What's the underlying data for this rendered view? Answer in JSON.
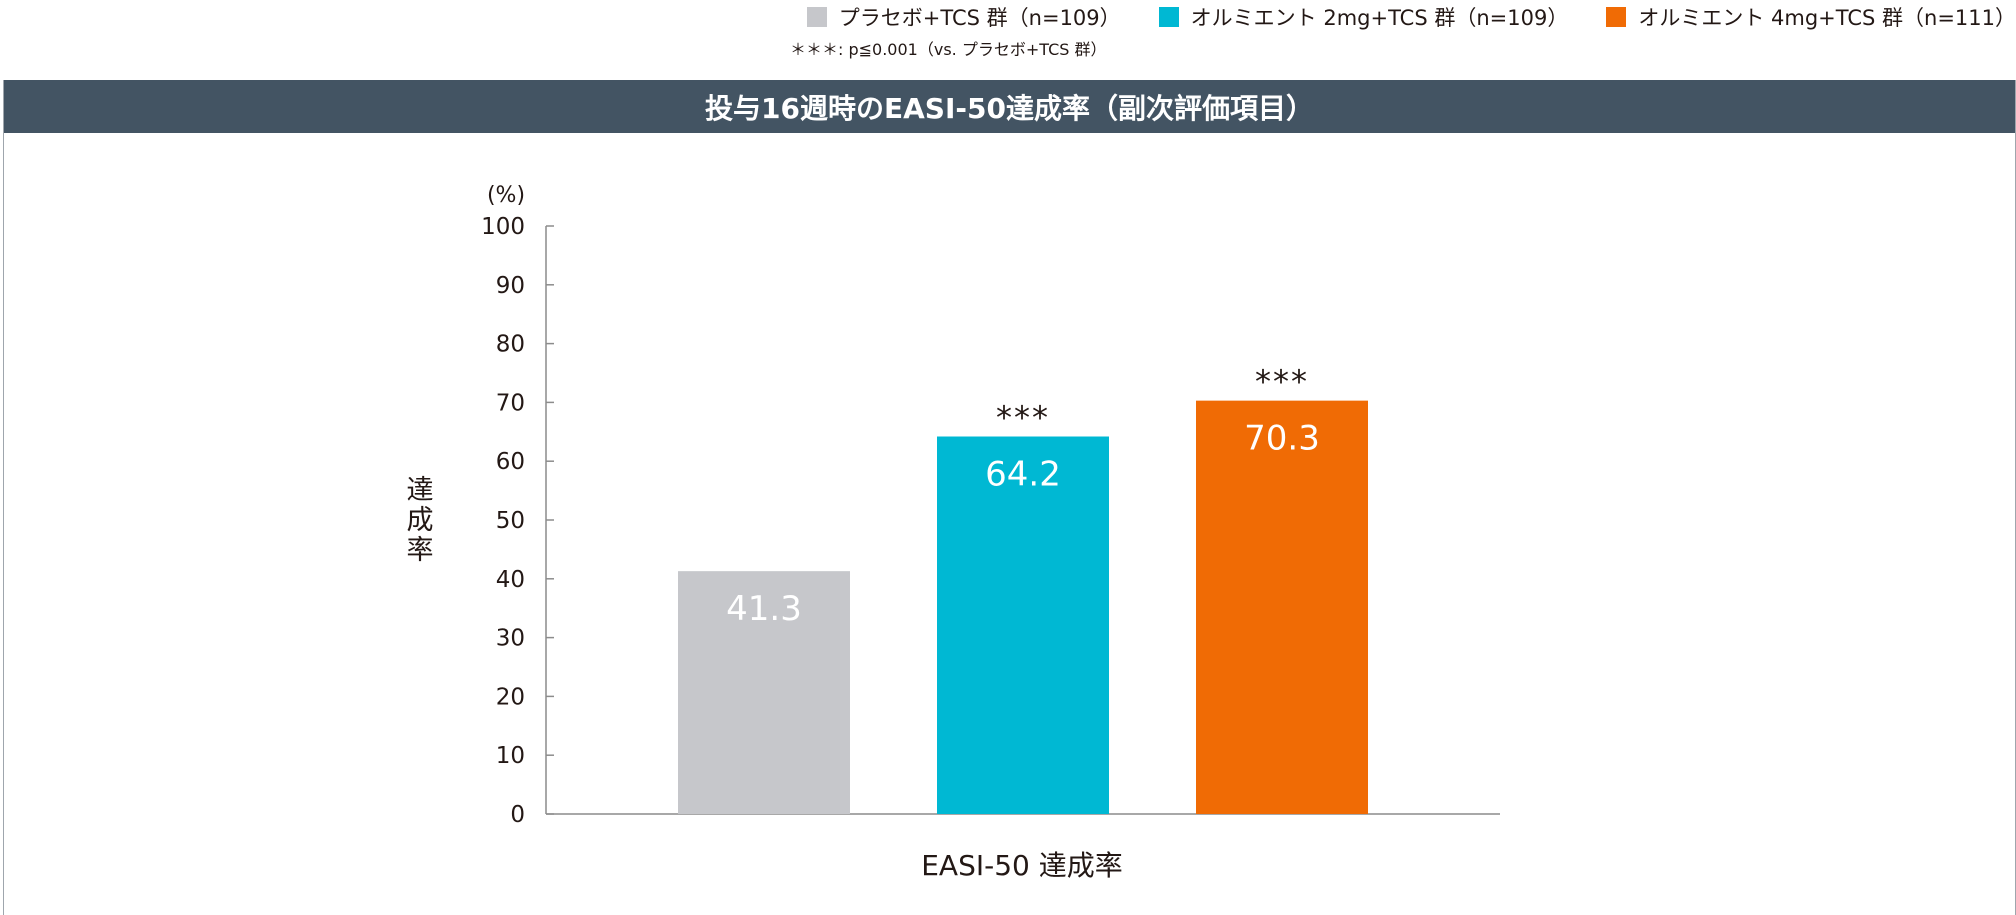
{
  "legend": {
    "items": [
      {
        "label": "プラセボ+TCS 群（n=109）",
        "color": "#c6c7cb"
      },
      {
        "label": "オルミエント 2mg+TCS 群（n=109）",
        "color": "#00b8d3"
      },
      {
        "label": "オルミエント 4mg+TCS 群（n=111）",
        "color": "#f06b05"
      }
    ],
    "footnote": "＊＊＊: p≦0.001（vs. プラセボ+TCS 群）"
  },
  "panel": {
    "title": "投与16週時のEASI-50達成率（副次評価項目）"
  },
  "chart_data": {
    "type": "bar",
    "title": "投与16週時のEASI-50達成率（副次評価項目）",
    "categories": [
      "EASI-50 達成率"
    ],
    "xlabel": "EASI-50 達成率",
    "ylabel": "達成率",
    "yunit": "(%)",
    "ylim": [
      0,
      100
    ],
    "yticks": [
      0,
      10,
      20,
      30,
      40,
      50,
      60,
      70,
      80,
      90,
      100
    ],
    "grid": false,
    "legend_position": "top-right",
    "series": [
      {
        "name": "プラセボ+TCS 群（n=109）",
        "values": [
          41.3
        ],
        "label": "41.3",
        "significance": "",
        "color": "#c6c7cb"
      },
      {
        "name": "オルミエント 2mg+TCS 群（n=109）",
        "values": [
          64.2
        ],
        "label": "64.2",
        "significance": "***",
        "color": "#00b8d3"
      },
      {
        "name": "オルミエント 4mg+TCS 群（n=111）",
        "values": [
          70.3
        ],
        "label": "70.3",
        "significance": "***",
        "color": "#f06b05"
      }
    ]
  }
}
